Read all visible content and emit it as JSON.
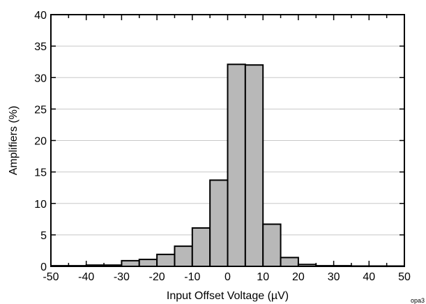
{
  "chart_data": {
    "type": "bar",
    "title": "",
    "xlabel": "Input Offset Voltage (µV)",
    "ylabel": "Amplifiers (%)",
    "xlim": [
      -50,
      50
    ],
    "ylim": [
      0,
      40
    ],
    "grid": "horizontal",
    "legend": "none",
    "bin_width": 5,
    "bin_edges": [
      -50,
      -45,
      -40,
      -35,
      -30,
      -25,
      -20,
      -15,
      -10,
      -5,
      0,
      5,
      10,
      15,
      20,
      25,
      30,
      35,
      40,
      45,
      50
    ],
    "values": [
      0.1,
      0.1,
      0.2,
      0.2,
      0.9,
      1.1,
      1.9,
      3.2,
      6.1,
      13.7,
      32.1,
      32.0,
      6.7,
      1.4,
      0.3,
      0.1,
      0.1,
      0.05,
      0.05,
      0.05
    ],
    "x_ticks": [
      "-50",
      "-40",
      "-30",
      "-20",
      "-10",
      "0",
      "10",
      "20",
      "30",
      "40",
      "50"
    ],
    "y_ticks": [
      "0",
      "5",
      "10",
      "15",
      "20",
      "25",
      "30",
      "35",
      "40"
    ],
    "colors": {
      "bar_fill": "#b8b8b8",
      "bar_stroke": "#000000",
      "grid": "#c8c8c8"
    }
  },
  "watermark": "opa3"
}
